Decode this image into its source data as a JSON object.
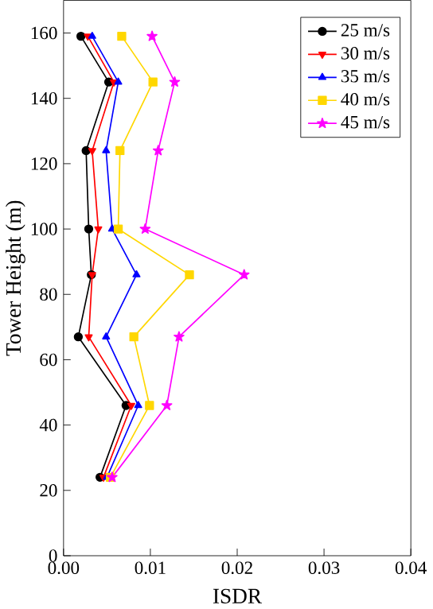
{
  "chart_data": {
    "type": "line",
    "xlabel": "ISDR",
    "ylabel": "Tower Height (m)",
    "xlim": [
      0,
      0.04
    ],
    "ylim": [
      0,
      170
    ],
    "xticks": [
      {
        "value": 0,
        "label": "0.00"
      },
      {
        "value": 0.01,
        "label": "0.01"
      },
      {
        "value": 0.02,
        "label": "0.02"
      },
      {
        "value": 0.03,
        "label": "0.03"
      },
      {
        "value": 0.04,
        "label": "0.04"
      }
    ],
    "yticks": [
      0,
      20,
      40,
      60,
      80,
      100,
      120,
      140,
      160
    ],
    "legend": "top right",
    "grid": false,
    "line_style": "solid",
    "series": [
      {
        "name": "25 m/s",
        "color": "#000000",
        "marker": "circle",
        "x": [
          0.0042,
          0.0072,
          0.0017,
          0.0032,
          0.0029,
          0.0026,
          0.0052,
          0.002
        ],
        "values": [
          24,
          46,
          67,
          86,
          100,
          124,
          145,
          159
        ]
      },
      {
        "name": "30 m/s",
        "color": "#ff0000",
        "marker": "triangle_down",
        "x": [
          0.0046,
          0.0078,
          0.0029,
          0.0033,
          0.004,
          0.0033,
          0.0058,
          0.0028
        ],
        "values": [
          24,
          46,
          67,
          86,
          100,
          124,
          145,
          159
        ]
      },
      {
        "name": "35 m/s",
        "color": "#0000ff",
        "marker": "triangle",
        "x": [
          0.005,
          0.0086,
          0.0049,
          0.0084,
          0.0056,
          0.0049,
          0.0063,
          0.0033
        ],
        "values": [
          24,
          46,
          67,
          86,
          100,
          124,
          145,
          159
        ]
      },
      {
        "name": "40 m/s",
        "color": "#ffd700",
        "marker": "square",
        "x": [
          0.0054,
          0.0099,
          0.0081,
          0.0145,
          0.0063,
          0.0065,
          0.0103,
          0.0067
        ],
        "values": [
          24,
          46,
          67,
          86,
          100,
          124,
          145,
          159
        ]
      },
      {
        "name": "45 m/s",
        "color": "#ff00ff",
        "marker": "star",
        "x": [
          0.0056,
          0.0119,
          0.0133,
          0.0208,
          0.0094,
          0.0109,
          0.0128,
          0.0102
        ],
        "values": [
          24,
          46,
          67,
          86,
          100,
          124,
          145,
          159
        ]
      }
    ]
  }
}
